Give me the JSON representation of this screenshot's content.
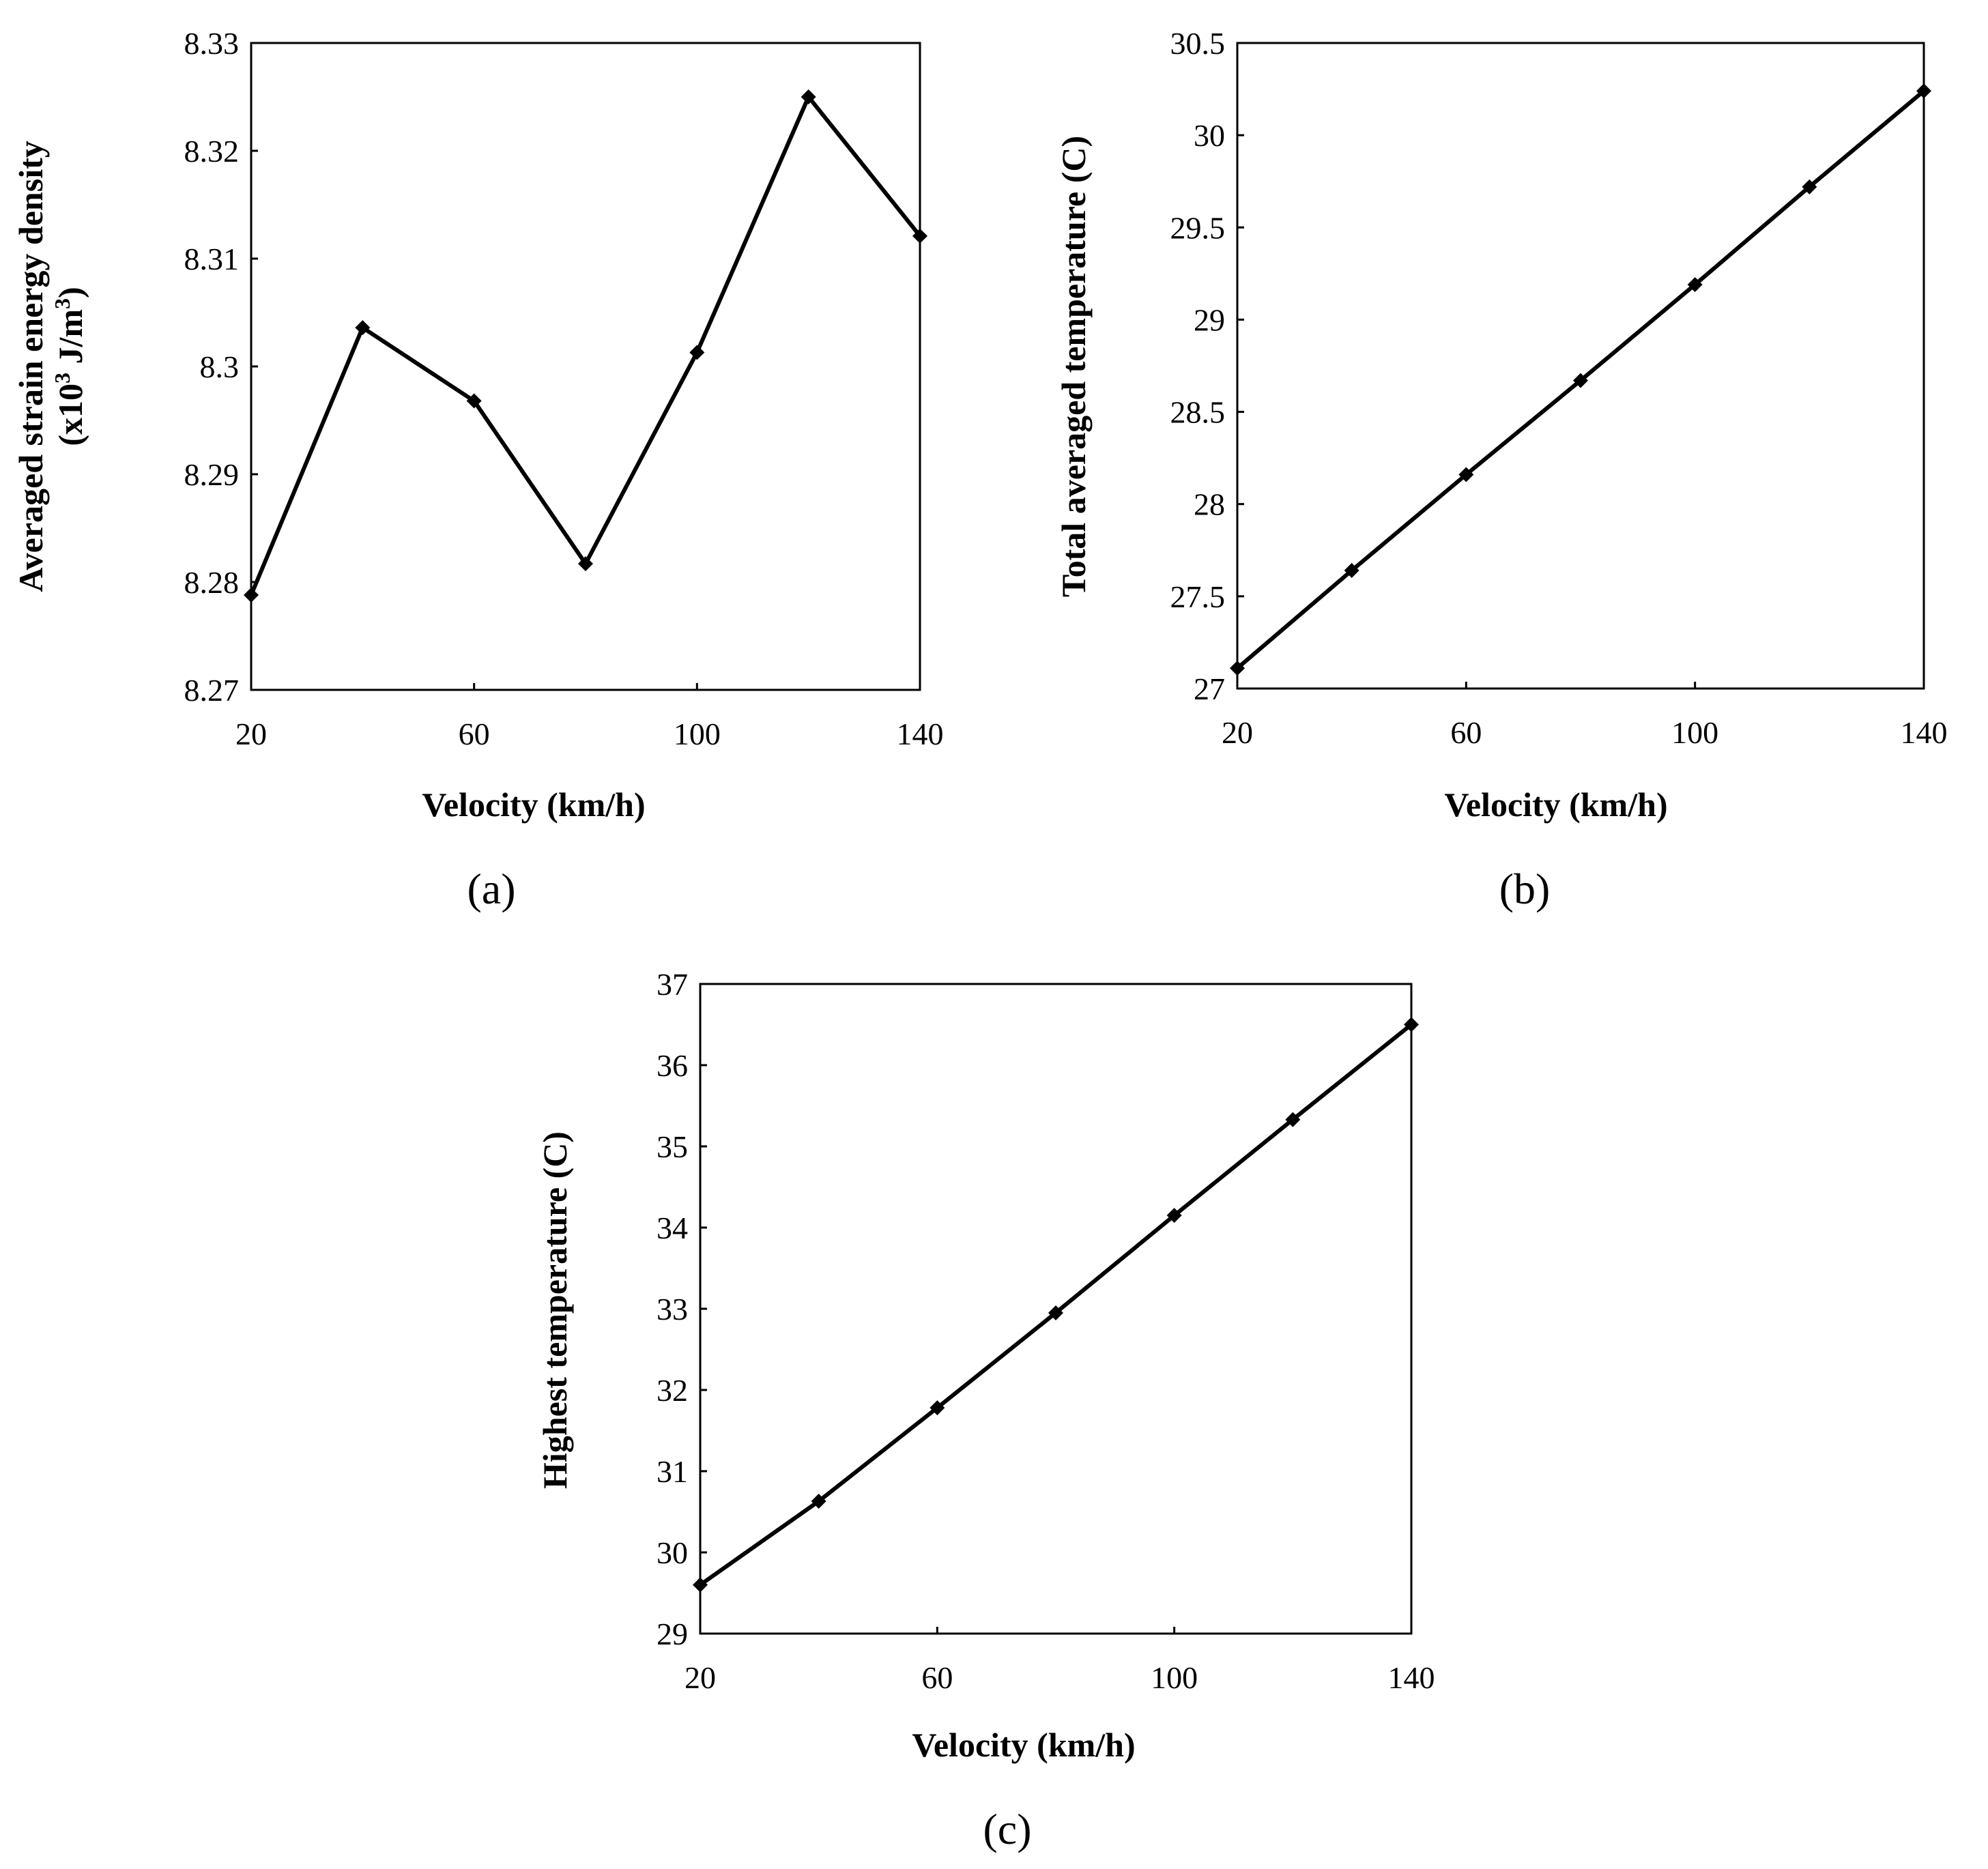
{
  "chart_data": [
    {
      "id": "a",
      "type": "line",
      "panel_label_text": "(a)",
      "xlabel": "Velocity (km/h)",
      "ylabel_line1": "Averaged strain energy density",
      "ylabel_line2": "(x10",
      "ylabel_sup1": "3",
      "ylabel_mid": " J/m",
      "ylabel_sup2": "3",
      "ylabel_end": ")",
      "xlim": [
        20,
        140
      ],
      "ylim": [
        8.27,
        8.33
      ],
      "xticks": [
        20,
        60,
        100,
        140
      ],
      "xtick_labels": [
        "20",
        "60",
        "100",
        "140"
      ],
      "yticks": [
        8.27,
        8.28,
        8.29,
        8.3,
        8.31,
        8.32,
        8.33
      ],
      "ytick_labels": [
        "8.27",
        "8.28",
        "8.29",
        "8.3",
        "8.31",
        "8.32",
        "8.33"
      ],
      "grid": false,
      "series": [
        {
          "name": "Averaged strain energy density",
          "x": [
            20,
            40,
            60,
            80,
            100,
            120,
            140
          ],
          "y": [
            8.2788,
            8.3036,
            8.2968,
            8.2817,
            8.3013,
            8.325,
            8.3121
          ]
        }
      ]
    },
    {
      "id": "b",
      "type": "line",
      "panel_label_text": "(b)",
      "xlabel": "Velocity (km/h)",
      "ylabel_line1": "Total averaged temperature (C)",
      "xlim": [
        20,
        140
      ],
      "ylim": [
        27,
        30.5
      ],
      "xticks": [
        20,
        60,
        100,
        140
      ],
      "xtick_labels": [
        "20",
        "60",
        "100",
        "140"
      ],
      "yticks": [
        27,
        27.5,
        28,
        28.5,
        29,
        29.5,
        30,
        30.5
      ],
      "ytick_labels": [
        "27",
        "27.5",
        "28",
        "28.5",
        "29",
        "29.5",
        "30",
        "30.5"
      ],
      "grid": false,
      "series": [
        {
          "name": "Total averaged temperature",
          "x": [
            20,
            40,
            60,
            80,
            100,
            120,
            140
          ],
          "y": [
            27.11,
            27.64,
            28.16,
            28.67,
            29.19,
            29.72,
            30.24
          ]
        }
      ]
    },
    {
      "id": "c",
      "type": "line",
      "panel_label_text": "(c)",
      "xlabel": "Velocity (km/h)",
      "ylabel_line1": "Highest temperature (C)",
      "xlim": [
        20,
        140
      ],
      "ylim": [
        29,
        37
      ],
      "xticks": [
        20,
        60,
        100,
        140
      ],
      "xtick_labels": [
        "20",
        "60",
        "100",
        "140"
      ],
      "yticks": [
        29,
        30,
        31,
        32,
        33,
        34,
        35,
        36,
        37
      ],
      "ytick_labels": [
        "29",
        "30",
        "31",
        "32",
        "33",
        "34",
        "35",
        "36",
        "37"
      ],
      "grid": false,
      "series": [
        {
          "name": "Highest temperature",
          "x": [
            20,
            40,
            60,
            80,
            100,
            120,
            140
          ],
          "y": [
            29.6,
            30.63,
            31.78,
            32.95,
            34.15,
            35.33,
            36.5
          ]
        }
      ]
    }
  ]
}
